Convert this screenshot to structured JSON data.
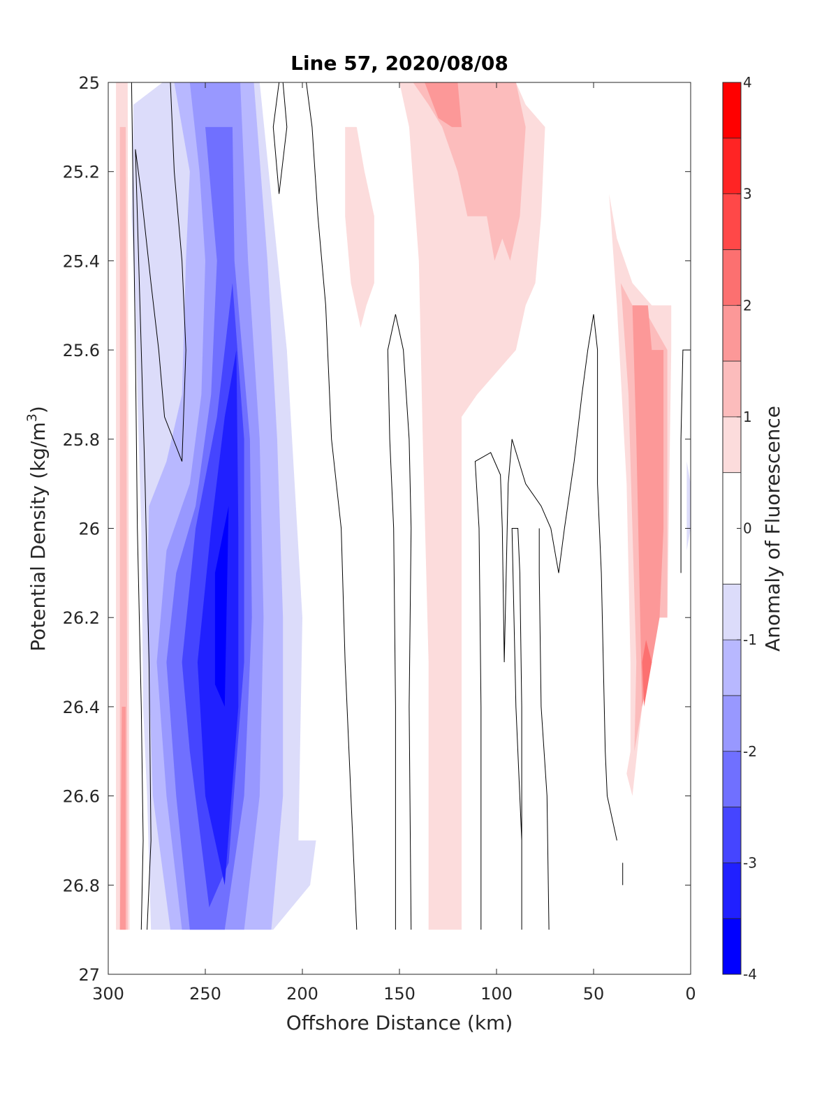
{
  "chart_data": {
    "type": "contour",
    "title": "Line 57, 2020/08/08",
    "xlabel": "Offshore Distance (km)",
    "ylabel_text": "Potential Density (kg/m",
    "ylabel_sup": "3",
    "ylabel_close": ")",
    "xlim": [
      300,
      0
    ],
    "x_reversed": true,
    "ylim": [
      25,
      27
    ],
    "y_reversed": true,
    "x_ticks": [
      300,
      250,
      200,
      150,
      100,
      50,
      0
    ],
    "x_tick_labels": [
      "300",
      "250",
      "200",
      "150",
      "100",
      "50",
      "0"
    ],
    "y_ticks": [
      25,
      25.2,
      25.4,
      25.6,
      25.8,
      26,
      26.2,
      26.4,
      26.6,
      26.8,
      27
    ],
    "y_tick_labels": [
      "25",
      "25.2",
      "25.4",
      "25.6",
      "25.8",
      "26",
      "26.2",
      "26.4",
      "26.6",
      "26.8",
      "27"
    ],
    "colorbar": {
      "label": "Anomaly of Fluorescence",
      "range": [
        -4,
        4
      ],
      "ticks": [
        -4,
        -3,
        -2,
        -1,
        0,
        1,
        2,
        3,
        4
      ],
      "tick_labels": [
        "-4",
        "-3",
        "-2",
        "-1",
        "0",
        "1",
        "2",
        "3",
        "4"
      ],
      "levels": [
        -4,
        -3.5,
        -3,
        -2.5,
        -2,
        -1.5,
        -1,
        -0.5,
        0.5,
        1,
        1.5,
        2,
        2.5,
        3,
        3.5,
        4
      ],
      "colors": [
        "#0000ff",
        "#2020ff",
        "#4545ff",
        "#7070ff",
        "#9898ff",
        "#b8b8ff",
        "#dcdcfa",
        "#ffffff",
        "#fcdcdc",
        "#fcbcbc",
        "#fc9898",
        "#fc7070",
        "#ff4848",
        "#ff2424",
        "#ff0000"
      ]
    },
    "filled_regions": [
      {
        "level": -0.75,
        "points": [
          [
            287,
            25.05
          ],
          [
            272,
            25
          ],
          [
            232,
            25
          ],
          [
            222,
            25
          ],
          [
            208,
            25.6
          ],
          [
            200,
            26.2
          ],
          [
            202,
            26.7
          ],
          [
            193,
            26.7
          ],
          [
            196,
            26.8
          ],
          [
            215,
            26.9
          ],
          [
            278,
            26.9
          ],
          [
            280,
            26.6
          ],
          [
            282,
            26.4
          ],
          [
            283,
            26.0
          ],
          [
            285,
            25.7
          ],
          [
            286,
            25.5
          ],
          [
            288,
            25.3
          ]
        ]
      },
      {
        "level": -1.25,
        "points": [
          [
            266,
            25
          ],
          [
            225,
            25
          ],
          [
            218,
            25.4
          ],
          [
            213,
            25.8
          ],
          [
            210,
            26.2
          ],
          [
            210,
            26.6
          ],
          [
            216,
            26.9
          ],
          [
            268,
            26.9
          ],
          [
            277,
            26.6
          ],
          [
            280,
            26.2
          ],
          [
            279,
            25.95
          ],
          [
            270,
            25.85
          ],
          [
            262,
            25.7
          ],
          [
            260,
            25.4
          ],
          [
            258,
            25.2
          ]
        ]
      },
      {
        "level": -1.75,
        "points": [
          [
            258,
            25
          ],
          [
            232,
            25
          ],
          [
            228,
            25.4
          ],
          [
            222,
            25.8
          ],
          [
            220,
            26.2
          ],
          [
            222,
            26.6
          ],
          [
            230,
            26.9
          ],
          [
            262,
            26.9
          ],
          [
            270,
            26.6
          ],
          [
            275,
            26.3
          ],
          [
            270,
            26.05
          ],
          [
            262,
            25.95
          ],
          [
            258,
            25.9
          ],
          [
            252,
            25.7
          ],
          [
            250,
            25.4
          ],
          [
            253,
            25.2
          ]
        ]
      },
      {
        "level": -2.25,
        "points": [
          [
            250,
            25.1
          ],
          [
            236,
            25.1
          ],
          [
            235,
            25.4
          ],
          [
            227,
            25.8
          ],
          [
            226,
            26.2
          ],
          [
            230,
            26.6
          ],
          [
            240,
            26.9
          ],
          [
            258,
            26.9
          ],
          [
            265,
            26.6
          ],
          [
            270,
            26.3
          ],
          [
            265,
            26.1
          ],
          [
            255,
            25.95
          ],
          [
            247,
            25.7
          ],
          [
            244,
            25.4
          ]
        ]
      },
      {
        "level": -2.75,
        "points": [
          [
            236,
            25.45
          ],
          [
            230,
            25.8
          ],
          [
            230,
            26.3
          ],
          [
            238,
            26.75
          ],
          [
            248,
            26.85
          ],
          [
            258,
            26.5
          ],
          [
            262,
            26.3
          ],
          [
            255,
            26.0
          ],
          [
            244,
            25.75
          ]
        ]
      },
      {
        "level": -3.25,
        "points": [
          [
            234,
            25.6
          ],
          [
            233,
            26.0
          ],
          [
            233,
            26.4
          ],
          [
            240,
            26.8
          ],
          [
            250,
            26.6
          ],
          [
            254,
            26.3
          ],
          [
            247,
            26.0
          ],
          [
            240,
            25.75
          ]
        ]
      },
      {
        "level": -3.75,
        "points": [
          [
            238,
            25.95
          ],
          [
            240,
            26.4
          ],
          [
            245,
            26.35
          ],
          [
            245,
            26.1
          ]
        ]
      },
      {
        "level": -0.75,
        "points": [
          [
            2,
            25.85
          ],
          [
            2,
            26.05
          ],
          [
            0,
            26.0
          ],
          [
            0,
            25.9
          ]
        ]
      },
      {
        "level": 0.75,
        "points": [
          [
            296,
            25
          ],
          [
            290,
            25
          ],
          [
            289,
            26.9
          ],
          [
            296,
            26.9
          ]
        ]
      },
      {
        "level": 1.25,
        "points": [
          [
            294,
            25.1
          ],
          [
            291,
            25.1
          ],
          [
            290,
            26.9
          ],
          [
            294,
            26.9
          ]
        ]
      },
      {
        "level": 1.75,
        "points": [
          [
            293,
            26.4
          ],
          [
            291,
            26.4
          ],
          [
            291,
            26.9
          ],
          [
            294,
            26.9
          ]
        ]
      },
      {
        "level": 0.75,
        "points": [
          [
            178,
            25.1
          ],
          [
            172,
            25.1
          ],
          [
            168,
            25.2
          ],
          [
            163,
            25.3
          ],
          [
            163,
            25.45
          ],
          [
            167,
            25.5
          ],
          [
            170,
            25.55
          ],
          [
            175,
            25.45
          ],
          [
            178,
            25.3
          ]
        ]
      },
      {
        "level": 0.75,
        "points": [
          [
            150,
            25
          ],
          [
            90,
            25
          ],
          [
            85,
            25.05
          ],
          [
            75,
            25.1
          ],
          [
            77,
            25.3
          ],
          [
            80,
            25.45
          ],
          [
            85,
            25.5
          ],
          [
            90,
            25.6
          ],
          [
            100,
            25.65
          ],
          [
            110,
            25.7
          ],
          [
            118,
            25.75
          ],
          [
            118,
            26.9
          ],
          [
            135,
            26.9
          ],
          [
            135,
            26.3
          ],
          [
            138,
            25.8
          ],
          [
            140,
            25.4
          ],
          [
            145,
            25.1
          ]
        ]
      },
      {
        "level": 1.25,
        "points": [
          [
            143,
            25
          ],
          [
            90,
            25
          ],
          [
            85,
            25.1
          ],
          [
            88,
            25.3
          ],
          [
            93,
            25.4
          ],
          [
            97,
            25.35
          ],
          [
            101,
            25.4
          ],
          [
            105,
            25.3
          ],
          [
            110,
            25.3
          ],
          [
            115,
            25.3
          ],
          [
            120,
            25.2
          ],
          [
            128,
            25.1
          ],
          [
            135,
            25.05
          ]
        ]
      },
      {
        "level": 1.75,
        "points": [
          [
            137,
            25
          ],
          [
            120,
            25
          ],
          [
            118,
            25.1
          ],
          [
            123,
            25.1
          ],
          [
            130,
            25.08
          ]
        ]
      },
      {
        "level": 0.75,
        "points": [
          [
            42,
            25.25
          ],
          [
            38,
            25.5
          ],
          [
            33,
            25.9
          ],
          [
            31,
            26.3
          ],
          [
            31,
            26.5
          ],
          [
            33,
            26.55
          ],
          [
            30,
            26.6
          ],
          [
            25,
            26.4
          ],
          [
            20,
            26.2
          ],
          [
            12,
            26.2
          ],
          [
            10,
            25.6
          ],
          [
            10,
            25.5
          ],
          [
            20,
            25.5
          ],
          [
            30,
            25.45
          ],
          [
            38,
            25.35
          ]
        ]
      },
      {
        "level": 1.25,
        "points": [
          [
            36,
            25.45
          ],
          [
            32,
            25.7
          ],
          [
            30,
            26.0
          ],
          [
            28,
            26.3
          ],
          [
            29,
            26.5
          ],
          [
            25,
            26.4
          ],
          [
            18,
            26.2
          ],
          [
            12,
            26.2
          ],
          [
            12,
            25.6
          ],
          [
            25,
            25.5
          ],
          [
            30,
            25.5
          ]
        ]
      },
      {
        "level": 1.75,
        "points": [
          [
            30,
            25.5
          ],
          [
            28,
            25.8
          ],
          [
            26,
            26.2
          ],
          [
            25,
            26.4
          ],
          [
            20,
            26.3
          ],
          [
            16,
            26.2
          ],
          [
            14,
            26.0
          ],
          [
            14,
            25.6
          ],
          [
            20,
            25.6
          ],
          [
            22,
            25.5
          ]
        ]
      },
      {
        "level": 2.25,
        "points": [
          [
            25,
            26.3
          ],
          [
            24,
            26.4
          ],
          [
            20,
            26.3
          ],
          [
            23,
            26.25
          ]
        ]
      }
    ],
    "contour_lines": [
      [
        [
          283,
          26.9
        ],
        [
          282,
          26.7
        ],
        [
          283,
          26.4
        ],
        [
          285,
          26.0
        ],
        [
          286,
          25.6
        ],
        [
          287,
          25.3
        ],
        [
          288,
          25.0
        ]
      ],
      [
        [
          280,
          26.9
        ],
        [
          278,
          26.7
        ],
        [
          279,
          26.3
        ],
        [
          281,
          25.9
        ],
        [
          283,
          25.6
        ],
        [
          285,
          25.3
        ],
        [
          286,
          25.15
        ],
        [
          283,
          25.25
        ],
        [
          278,
          25.45
        ],
        [
          274,
          25.6
        ],
        [
          271,
          25.75
        ],
        [
          262,
          25.85
        ],
        [
          260,
          25.6
        ],
        [
          262,
          25.4
        ],
        [
          266,
          25.2
        ],
        [
          268,
          25.0
        ]
      ],
      [
        [
          212,
          25.0
        ],
        [
          215,
          25.1
        ],
        [
          212,
          25.25
        ],
        [
          208,
          25.1
        ],
        [
          210,
          25.0
        ]
      ],
      [
        [
          198,
          25.0
        ],
        [
          195,
          25.1
        ],
        [
          192,
          25.3
        ],
        [
          188,
          25.5
        ],
        [
          185,
          25.8
        ],
        [
          180,
          26.0
        ],
        [
          178,
          26.3
        ],
        [
          175,
          26.6
        ],
        [
          172,
          26.9
        ]
      ],
      [
        [
          152,
          26.9
        ],
        [
          152,
          26.4
        ],
        [
          153,
          26.0
        ],
        [
          155,
          25.8
        ],
        [
          156,
          25.6
        ],
        [
          152,
          25.52
        ],
        [
          148,
          25.6
        ],
        [
          145,
          25.8
        ],
        [
          144,
          26.0
        ],
        [
          145,
          26.4
        ],
        [
          144,
          26.9
        ]
      ],
      [
        [
          108,
          26.9
        ],
        [
          108,
          26.4
        ],
        [
          109,
          26.0
        ],
        [
          111,
          25.85
        ],
        [
          103,
          25.83
        ],
        [
          98,
          25.88
        ],
        [
          97,
          26.0
        ],
        [
          96,
          26.3
        ],
        [
          94,
          25.9
        ],
        [
          92,
          25.8
        ],
        [
          85,
          25.9
        ],
        [
          77,
          25.95
        ],
        [
          72,
          26.0
        ],
        [
          68,
          26.1
        ],
        [
          65,
          26.0
        ],
        [
          60,
          25.85
        ],
        [
          56,
          25.7
        ],
        [
          53,
          25.6
        ],
        [
          50,
          25.52
        ],
        [
          48,
          25.6
        ],
        [
          48,
          25.9
        ],
        [
          46,
          26.1
        ],
        [
          45,
          26.3
        ],
        [
          44,
          26.5
        ],
        [
          43,
          26.6
        ],
        [
          38,
          26.7
        ]
      ],
      [
        [
          87,
          26.9
        ],
        [
          87,
          26.4
        ],
        [
          88,
          26.1
        ],
        [
          89,
          26.0
        ],
        [
          92,
          26.0
        ],
        [
          91,
          26.2
        ],
        [
          90,
          26.4
        ],
        [
          87,
          26.7
        ]
      ],
      [
        [
          73,
          26.9
        ],
        [
          74,
          26.6
        ],
        [
          77,
          26.4
        ],
        [
          78,
          26.1
        ],
        [
          78,
          26.0
        ]
      ],
      [
        [
          5,
          26.1
        ],
        [
          5,
          25.8
        ],
        [
          4,
          25.6
        ],
        [
          0,
          25.6
        ]
      ],
      [
        [
          35,
          26.8
        ],
        [
          35,
          26.75
        ]
      ]
    ]
  }
}
